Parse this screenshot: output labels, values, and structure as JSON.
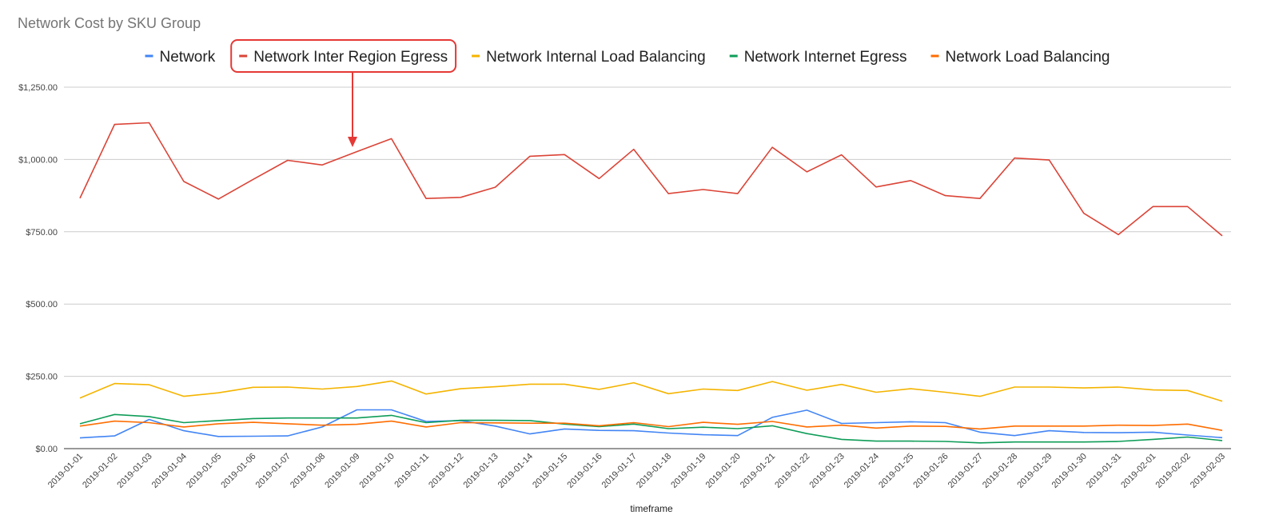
{
  "chart_data": {
    "type": "line",
    "title": "Network Cost by SKU Group",
    "xlabel": "timeframe",
    "ylabel": "",
    "ylim": [
      0,
      1250
    ],
    "yticks": [
      {
        "value": 0,
        "label": "$0.00"
      },
      {
        "value": 250,
        "label": "$250.00"
      },
      {
        "value": 500,
        "label": "$500.00"
      },
      {
        "value": 750,
        "label": "$750.00"
      },
      {
        "value": 1000,
        "label": "$1,000.00"
      },
      {
        "value": 1250,
        "label": "$1,250.00"
      }
    ],
    "grid": true,
    "legend_position": "top",
    "highlighted_series": "Network Inter Region Egress",
    "annotation_color": "#e53935",
    "x": [
      "2019-01-01",
      "2019-01-02",
      "2019-01-03",
      "2019-01-04",
      "2019-01-05",
      "2019-01-06",
      "2019-01-07",
      "2019-01-08",
      "2019-01-09",
      "2019-01-10",
      "2019-01-11",
      "2019-01-12",
      "2019-01-13",
      "2019-01-14",
      "2019-01-15",
      "2019-01-16",
      "2019-01-17",
      "2019-01-18",
      "2019-01-19",
      "2019-01-20",
      "2019-01-21",
      "2019-01-22",
      "2019-01-23",
      "2019-01-24",
      "2019-01-25",
      "2019-01-26",
      "2019-01-27",
      "2019-01-28",
      "2019-01-29",
      "2019-01-30",
      "2019-01-31",
      "2019-02-01",
      "2019-02-02",
      "2019-02-03"
    ],
    "series": [
      {
        "name": "Network",
        "color": "#4285f4",
        "values": [
          37,
          44,
          101,
          62,
          42,
          43,
          44,
          75,
          134,
          134,
          94,
          97,
          78,
          51,
          68,
          63,
          62,
          54,
          48,
          45,
          108,
          133,
          87,
          90,
          93,
          90,
          57,
          45,
          62,
          56,
          55,
          57,
          47,
          38
        ]
      },
      {
        "name": "Network Inter Region Egress",
        "color": "#db4437",
        "values": [
          866,
          1121,
          1127,
          924,
          863,
          931,
          997,
          981,
          1027,
          1072,
          865,
          869,
          904,
          1011,
          1017,
          934,
          1035,
          882,
          896,
          882,
          1042,
          957,
          1016,
          905,
          927,
          875,
          865,
          1005,
          998,
          814,
          740,
          837,
          837,
          736
        ]
      },
      {
        "name": "Network Internal Load Balancing",
        "color": "#f4b400",
        "values": [
          175,
          225,
          221,
          181,
          193,
          212,
          213,
          206,
          215,
          234,
          189,
          207,
          214,
          223,
          223,
          205,
          228,
          190,
          206,
          201,
          232,
          202,
          222,
          195,
          207,
          195,
          181,
          213,
          213,
          210,
          213,
          203,
          201,
          164
        ]
      },
      {
        "name": "Network Internet Egress",
        "color": "#0f9d58",
        "values": [
          86,
          118,
          111,
          90,
          97,
          104,
          106,
          106,
          106,
          115,
          90,
          98,
          98,
          97,
          85,
          76,
          85,
          69,
          74,
          69,
          79,
          52,
          32,
          26,
          26,
          25,
          20,
          23,
          23,
          23,
          25,
          32,
          40,
          28
        ]
      },
      {
        "name": "Network Load Balancing",
        "color": "#ff6d01",
        "values": [
          78,
          95,
          90,
          75,
          86,
          91,
          86,
          81,
          84,
          95,
          75,
          90,
          89,
          88,
          88,
          79,
          90,
          76,
          91,
          84,
          94,
          75,
          81,
          71,
          78,
          77,
          68,
          78,
          78,
          78,
          81,
          80,
          85,
          63
        ]
      }
    ]
  }
}
